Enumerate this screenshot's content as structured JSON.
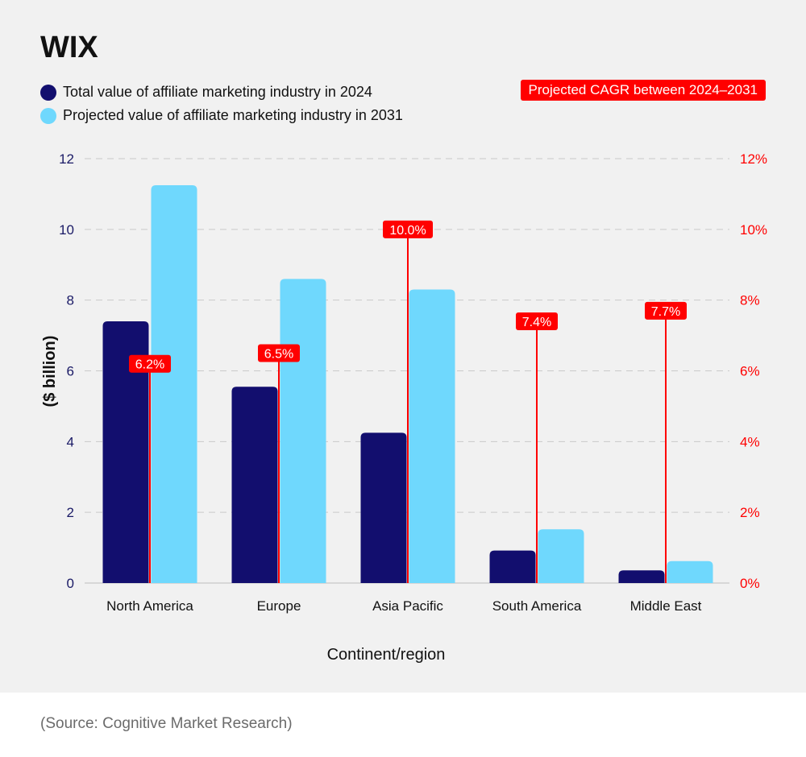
{
  "brand": "WIX",
  "legend": {
    "series_2024": "Total value of affiliate marketing industry in 2024",
    "series_2031": "Projected value of affiliate marketing industry in 2031",
    "cagr": "Projected CAGR between 2024–2031"
  },
  "source": "(Source: Cognitive Market Research)",
  "colors": {
    "series_2024": "#120e6e",
    "series_2031": "#6fd8fd",
    "cagr": "#ff0000",
    "grid": "#c9c9c9",
    "left_axis_text": "#1a1a66",
    "text": "#111111"
  },
  "chart_data": {
    "type": "bar",
    "title": "",
    "xlabel": "Continent/region",
    "ylabel": "($ billion)",
    "ylim": [
      0,
      12
    ],
    "y_ticks": [
      "0",
      "2",
      "4",
      "6",
      "8",
      "10",
      "12"
    ],
    "y2lim": [
      0,
      12
    ],
    "y2_ticks": [
      "0%",
      "2%",
      "4%",
      "6%",
      "8%",
      "10%",
      "12%"
    ],
    "grid": true,
    "categories": [
      "North America",
      "Europe",
      "Asia Pacific",
      "South America",
      "Middle East"
    ],
    "series": [
      {
        "name": "Total value of affiliate marketing industry in 2024",
        "values": [
          7.4,
          5.55,
          4.25,
          0.92,
          0.36
        ]
      },
      {
        "name": "Projected value of affiliate marketing industry in 2031",
        "values": [
          11.25,
          8.6,
          8.3,
          1.52,
          0.62
        ]
      }
    ],
    "cagr": {
      "name": "Projected CAGR between 2024–2031",
      "values": [
        6.2,
        6.5,
        10.0,
        7.4,
        7.7
      ],
      "labels": [
        "6.2%",
        "6.5%",
        "10.0%",
        "7.4%",
        "7.7%"
      ]
    }
  }
}
